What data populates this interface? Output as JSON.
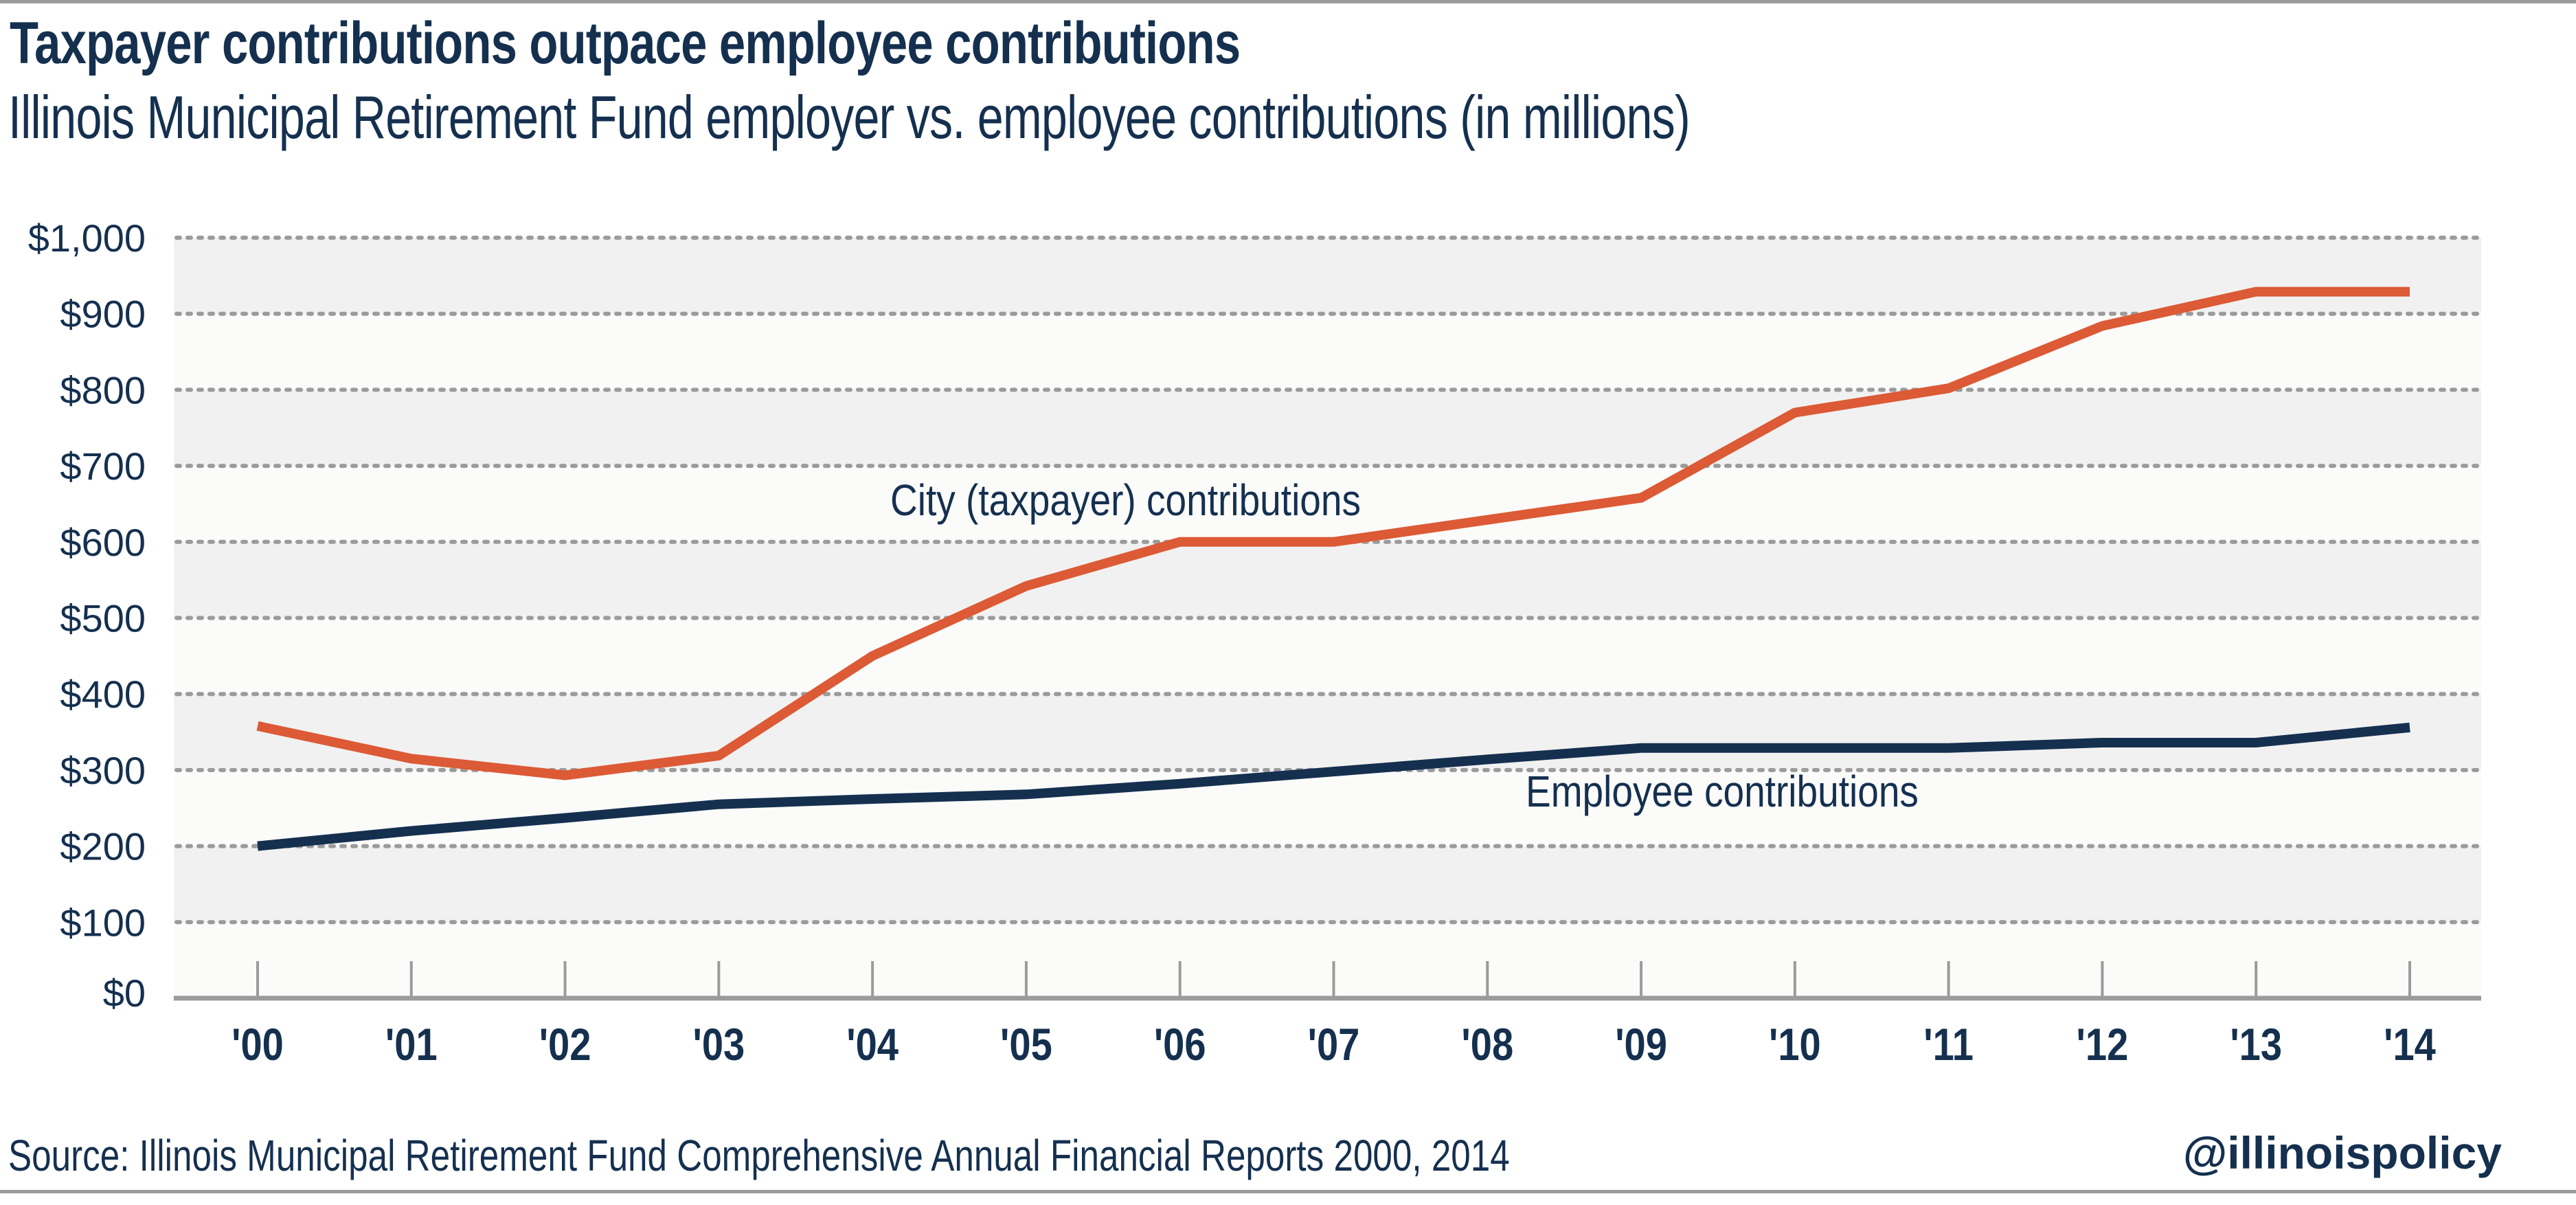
{
  "title": "Taxpayer contributions outpace employee contributions",
  "subtitle": "Illinois Municipal Retirement Fund employer vs. employee contributions (in millions)",
  "footer": {
    "source": "Source: Illinois Municipal Retirement Fund Comprehensive Annual Financial Reports 2000, 2014",
    "handle": "@illinoispolicy"
  },
  "colors": {
    "text": "#15304f",
    "city_line": "#dc5a35",
    "employee_line": "#15304f",
    "band_dark": "#f1f1f1",
    "band_light": "#fbfbfa",
    "grid": "#9b9b9b"
  },
  "chart_data": {
    "type": "line",
    "title": "Taxpayer contributions outpace employee contributions",
    "subtitle": "Illinois Municipal Retirement Fund employer vs. employee contributions (in millions)",
    "xlabel": "",
    "ylabel": "",
    "categories": [
      "'00",
      "'01",
      "'02",
      "'03",
      "'04",
      "'05",
      "'06",
      "'07",
      "'08",
      "'09",
      "'10",
      "'11",
      "'12",
      "'13",
      "'14"
    ],
    "x": [
      2000,
      2001,
      2002,
      2003,
      2004,
      2005,
      2006,
      2007,
      2008,
      2009,
      2010,
      2011,
      2012,
      2013,
      2014
    ],
    "ylim": [
      0,
      1000
    ],
    "yticks": [
      0,
      100,
      200,
      300,
      400,
      500,
      600,
      700,
      800,
      900,
      1000
    ],
    "ytick_labels": [
      "$0",
      "$100",
      "$200",
      "$300",
      "$400",
      "$500",
      "$600",
      "$700",
      "$800",
      "$900",
      "$1,000"
    ],
    "grid": true,
    "legend": "none (direct labels on lines)",
    "series": [
      {
        "name": "City (taxpayer) contributions",
        "color": "#dc5a35",
        "values": [
          358,
          315,
          293,
          319,
          450,
          542,
          600,
          600,
          629,
          658,
          770,
          802,
          884,
          929,
          929
        ]
      },
      {
        "name": "Employee contributions",
        "color": "#15304f",
        "values": [
          200,
          220,
          237,
          255,
          262,
          268,
          282,
          298,
          314,
          329,
          329,
          329,
          336,
          336,
          356
        ]
      }
    ],
    "annotations": [
      {
        "text": "City (taxpayer) contributions",
        "series": 0,
        "near": "'06"
      },
      {
        "text": "Employee contributions",
        "series": 1,
        "near": "'10"
      }
    ]
  }
}
